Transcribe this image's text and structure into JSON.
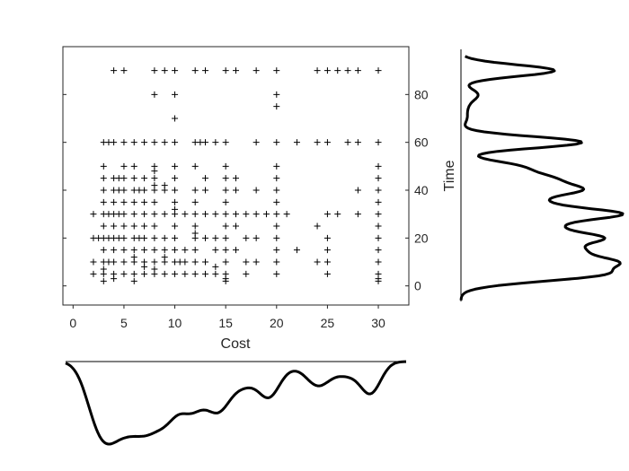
{
  "chart_data": {
    "type": "scatter",
    "title": "",
    "xlabel": "Cost",
    "ylabel": "Time",
    "xlim": [
      -1,
      33
    ],
    "ylim": [
      -8,
      100
    ],
    "xticks": [
      0,
      5,
      10,
      15,
      20,
      25,
      30
    ],
    "yticks": [
      0,
      20,
      40,
      60,
      80
    ],
    "marker": "+",
    "grid": false,
    "points": [
      [
        4,
        90
      ],
      [
        5,
        90
      ],
      [
        8,
        90
      ],
      [
        9,
        90
      ],
      [
        10,
        90
      ],
      [
        12,
        90
      ],
      [
        13,
        90
      ],
      [
        15,
        90
      ],
      [
        16,
        90
      ],
      [
        18,
        90
      ],
      [
        20,
        90
      ],
      [
        24,
        90
      ],
      [
        25,
        90
      ],
      [
        26,
        90
      ],
      [
        27,
        90
      ],
      [
        28,
        90
      ],
      [
        30,
        90
      ],
      [
        8,
        80
      ],
      [
        10,
        80
      ],
      [
        20,
        80
      ],
      [
        20,
        75
      ],
      [
        10,
        70
      ],
      [
        3,
        60
      ],
      [
        3.5,
        60
      ],
      [
        4,
        60
      ],
      [
        5,
        60
      ],
      [
        6,
        60
      ],
      [
        7,
        60
      ],
      [
        8,
        60
      ],
      [
        9,
        60
      ],
      [
        10,
        60
      ],
      [
        12,
        60
      ],
      [
        12.5,
        60
      ],
      [
        13,
        60
      ],
      [
        14,
        60
      ],
      [
        15,
        60
      ],
      [
        18,
        60
      ],
      [
        20,
        60
      ],
      [
        22,
        60
      ],
      [
        24,
        60
      ],
      [
        25,
        60
      ],
      [
        27,
        60
      ],
      [
        28,
        60
      ],
      [
        30,
        60
      ],
      [
        3,
        50
      ],
      [
        5,
        50
      ],
      [
        6,
        50
      ],
      [
        8,
        50
      ],
      [
        10,
        50
      ],
      [
        12,
        50
      ],
      [
        15,
        50
      ],
      [
        20,
        50
      ],
      [
        30,
        50
      ],
      [
        3,
        45
      ],
      [
        4,
        45
      ],
      [
        4.5,
        45
      ],
      [
        5,
        45
      ],
      [
        6,
        45
      ],
      [
        7,
        45
      ],
      [
        8,
        45
      ],
      [
        10,
        45
      ],
      [
        13,
        45
      ],
      [
        15,
        45
      ],
      [
        16,
        45
      ],
      [
        20,
        45
      ],
      [
        30,
        45
      ],
      [
        3,
        40
      ],
      [
        4,
        40
      ],
      [
        4.5,
        40
      ],
      [
        5,
        40
      ],
      [
        6,
        40
      ],
      [
        6.5,
        40
      ],
      [
        7,
        40
      ],
      [
        8,
        40
      ],
      [
        9,
        40
      ],
      [
        10,
        40
      ],
      [
        12,
        40
      ],
      [
        13,
        40
      ],
      [
        15,
        40
      ],
      [
        16,
        40
      ],
      [
        18,
        40
      ],
      [
        20,
        40
      ],
      [
        28,
        40
      ],
      [
        30,
        40
      ],
      [
        3,
        35
      ],
      [
        4,
        35
      ],
      [
        5,
        35
      ],
      [
        6,
        35
      ],
      [
        7,
        35
      ],
      [
        8,
        35
      ],
      [
        10,
        35
      ],
      [
        12,
        35
      ],
      [
        15,
        35
      ],
      [
        20,
        35
      ],
      [
        30,
        35
      ],
      [
        2,
        30
      ],
      [
        3,
        30
      ],
      [
        3.5,
        30
      ],
      [
        4,
        30
      ],
      [
        4.5,
        30
      ],
      [
        5,
        30
      ],
      [
        6,
        30
      ],
      [
        7,
        30
      ],
      [
        8,
        30
      ],
      [
        9,
        30
      ],
      [
        10,
        30
      ],
      [
        11,
        30
      ],
      [
        12,
        30
      ],
      [
        13,
        30
      ],
      [
        14,
        30
      ],
      [
        15,
        30
      ],
      [
        16,
        30
      ],
      [
        17,
        30
      ],
      [
        18,
        30
      ],
      [
        19,
        30
      ],
      [
        20,
        30
      ],
      [
        21,
        30
      ],
      [
        25,
        30
      ],
      [
        26,
        30
      ],
      [
        28,
        30
      ],
      [
        30,
        30
      ],
      [
        3,
        25
      ],
      [
        4,
        25
      ],
      [
        5,
        25
      ],
      [
        6,
        25
      ],
      [
        7,
        25
      ],
      [
        8,
        25
      ],
      [
        10,
        25
      ],
      [
        12,
        25
      ],
      [
        15,
        25
      ],
      [
        16,
        25
      ],
      [
        20,
        25
      ],
      [
        24,
        25
      ],
      [
        30,
        25
      ],
      [
        2,
        20
      ],
      [
        2.5,
        20
      ],
      [
        3,
        20
      ],
      [
        3.5,
        20
      ],
      [
        4,
        20
      ],
      [
        4.5,
        20
      ],
      [
        5,
        20
      ],
      [
        6,
        20
      ],
      [
        6.5,
        20
      ],
      [
        7,
        20
      ],
      [
        8,
        20
      ],
      [
        9,
        20
      ],
      [
        10,
        20
      ],
      [
        12,
        20
      ],
      [
        13,
        20
      ],
      [
        14,
        20
      ],
      [
        15,
        20
      ],
      [
        17,
        20
      ],
      [
        18,
        20
      ],
      [
        20,
        20
      ],
      [
        25,
        20
      ],
      [
        30,
        20
      ],
      [
        3,
        15
      ],
      [
        4,
        15
      ],
      [
        5,
        15
      ],
      [
        6,
        15
      ],
      [
        7,
        15
      ],
      [
        8,
        15
      ],
      [
        9,
        15
      ],
      [
        10,
        15
      ],
      [
        11,
        15
      ],
      [
        12,
        15
      ],
      [
        14,
        15
      ],
      [
        15,
        15
      ],
      [
        16,
        15
      ],
      [
        20,
        15
      ],
      [
        22,
        15
      ],
      [
        25,
        15
      ],
      [
        30,
        15
      ],
      [
        2,
        10
      ],
      [
        3,
        10
      ],
      [
        3.5,
        10
      ],
      [
        4,
        10
      ],
      [
        5,
        10
      ],
      [
        6,
        10
      ],
      [
        7,
        10
      ],
      [
        8,
        10
      ],
      [
        9,
        10
      ],
      [
        10,
        10
      ],
      [
        10.5,
        10
      ],
      [
        11,
        10
      ],
      [
        12,
        10
      ],
      [
        13,
        10
      ],
      [
        15,
        10
      ],
      [
        17,
        10
      ],
      [
        18,
        10
      ],
      [
        20,
        10
      ],
      [
        24,
        10
      ],
      [
        25,
        10
      ],
      [
        30,
        10
      ],
      [
        2,
        5
      ],
      [
        3,
        5
      ],
      [
        4,
        5
      ],
      [
        5,
        5
      ],
      [
        6,
        5
      ],
      [
        7,
        5
      ],
      [
        8,
        5
      ],
      [
        9,
        5
      ],
      [
        10,
        5
      ],
      [
        11,
        5
      ],
      [
        12,
        5
      ],
      [
        13,
        5
      ],
      [
        14,
        5
      ],
      [
        15,
        5
      ],
      [
        17,
        5
      ],
      [
        20,
        5
      ],
      [
        25,
        5
      ],
      [
        30,
        5
      ],
      [
        3,
        2
      ],
      [
        4,
        3
      ],
      [
        6,
        2
      ],
      [
        15,
        2
      ],
      [
        15,
        3
      ],
      [
        30,
        2
      ],
      [
        30,
        3
      ],
      [
        6,
        12
      ],
      [
        8,
        7
      ],
      [
        9,
        12
      ],
      [
        14,
        8
      ],
      [
        3,
        7
      ],
      [
        7,
        8
      ],
      [
        10,
        32
      ],
      [
        12,
        22
      ],
      [
        8,
        42
      ],
      [
        9,
        42
      ],
      [
        8,
        48
      ]
    ]
  }
}
